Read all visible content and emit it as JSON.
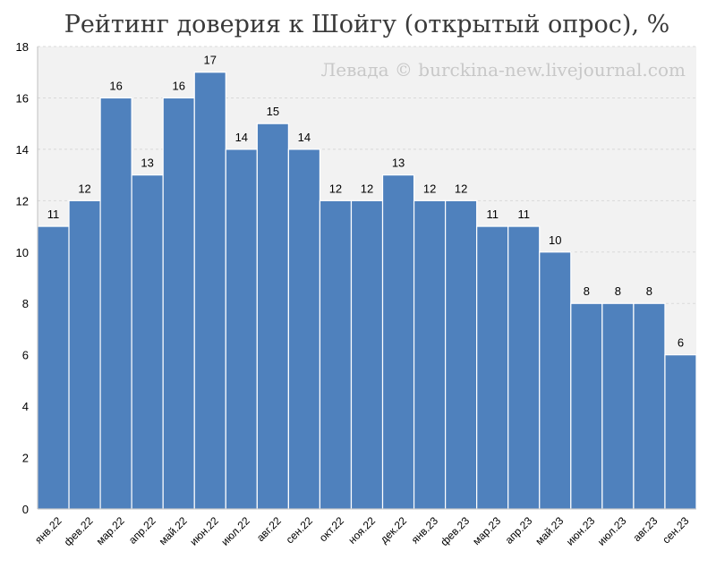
{
  "chart_data": {
    "type": "bar",
    "title": "Рейтинг доверия к Шойгу (открытый опрос), %",
    "watermark": "Левада © burckina-new.livejournal.com",
    "categories": [
      "янв.22",
      "фев.22",
      "мар.22",
      "апр.22",
      "май.22",
      "июн.22",
      "июл.22",
      "авг.22",
      "сен.22",
      "окт.22",
      "ноя.22",
      "дек.22",
      "янв.23",
      "фев.23",
      "мар.23",
      "апр.23",
      "май.23",
      "июн.23",
      "июл.23",
      "авг.23",
      "сен.23"
    ],
    "values": [
      11,
      12,
      16,
      13,
      16,
      17,
      14,
      15,
      14,
      12,
      12,
      13,
      12,
      12,
      11,
      11,
      10,
      8,
      8,
      8,
      6
    ],
    "ylim": [
      0,
      18
    ],
    "yticks": [
      0,
      2,
      4,
      6,
      8,
      10,
      12,
      14,
      16,
      18
    ],
    "grid": true,
    "colors": {
      "bar": "#4f81bd",
      "plot_bg": "#f2f2f2"
    }
  }
}
